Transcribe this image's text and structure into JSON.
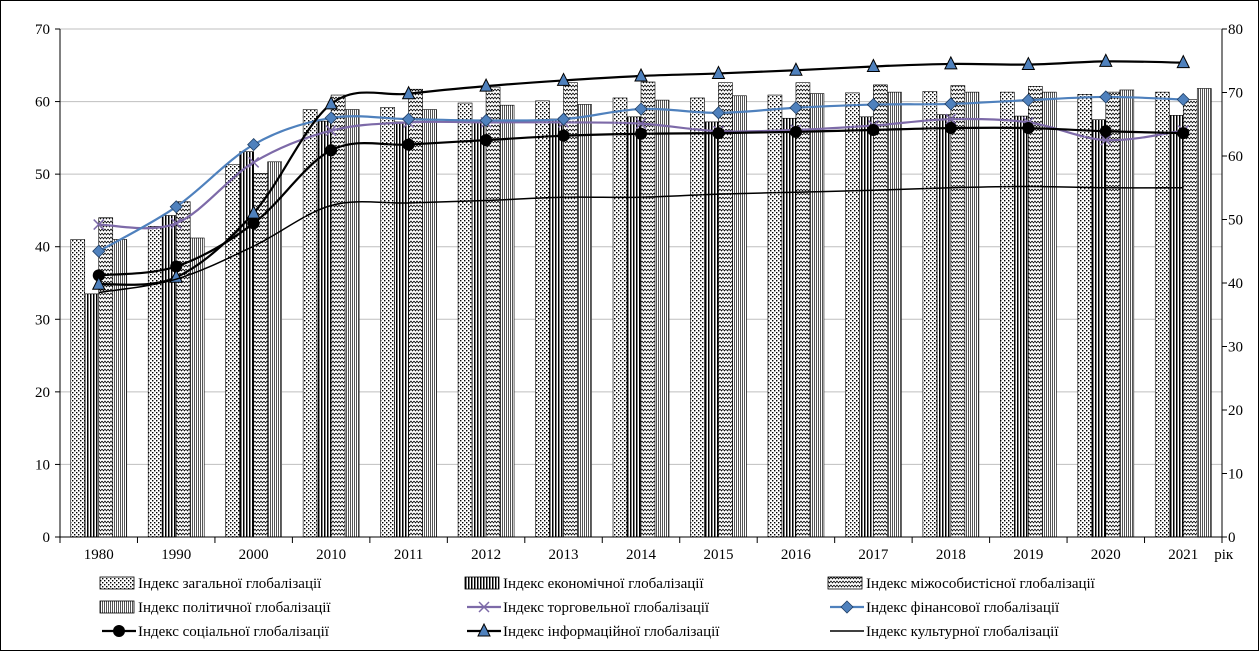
{
  "chart_data": {
    "type": "bar",
    "title": "",
    "xlabel": "рік",
    "ylabel_left": "",
    "ylabel_right": "",
    "categories": [
      "1980",
      "1990",
      "2000",
      "2010",
      "2011",
      "2012",
      "2013",
      "2014",
      "2015",
      "2016",
      "2017",
      "2018",
      "2019",
      "2020",
      "2021"
    ],
    "ylim_left": [
      0,
      70
    ],
    "yticks_left": [
      0,
      10,
      20,
      30,
      40,
      50,
      60,
      70
    ],
    "ylim_right": [
      0,
      80
    ],
    "yticks_right": [
      0,
      10,
      20,
      30,
      40,
      50,
      60,
      70,
      80
    ],
    "grid": "horizontal",
    "legend_position": "bottom",
    "bar_series": [
      {
        "name": "Індекс загальної глобалізації",
        "axis": "left",
        "pattern": "dots",
        "values": [
          41.0,
          42.8,
          51.3,
          58.9,
          59.2,
          59.8,
          60.1,
          60.5,
          60.5,
          60.9,
          61.2,
          61.4,
          61.3,
          61.0,
          61.3
        ]
      },
      {
        "name": "Індекс економічної глобалізації",
        "axis": "left",
        "pattern": "vlines",
        "values": [
          33.5,
          44.3,
          53.1,
          57.3,
          57.2,
          57.4,
          57.6,
          57.9,
          57.2,
          57.7,
          57.9,
          58.2,
          58.0,
          57.5,
          58.1
        ]
      },
      {
        "name": "Індекс міжособистісної глобалізації",
        "axis": "left",
        "pattern": "waves",
        "values": [
          44.0,
          46.2,
          50.1,
          60.9,
          61.7,
          62.0,
          62.6,
          62.7,
          62.6,
          62.6,
          62.3,
          62.2,
          62.1,
          61.3,
          60.3
        ]
      },
      {
        "name": "Індекс політичної глобалізації",
        "axis": "left",
        "pattern": "dense-vlines",
        "values": [
          41.0,
          41.2,
          51.7,
          58.9,
          58.9,
          59.5,
          59.6,
          60.2,
          60.8,
          61.1,
          61.3,
          61.3,
          61.3,
          61.6,
          61.8
        ]
      }
    ],
    "line_series": [
      {
        "name": "Індекс торговельної глобалізації",
        "axis": "right",
        "marker": "x",
        "color": "#7d6aa8",
        "values": [
          49.2,
          49.4,
          59.0,
          64.0,
          65.3,
          65.3,
          65.3,
          65.1,
          63.9,
          64.1,
          64.8,
          65.8,
          65.3,
          62.5,
          64.0
        ]
      },
      {
        "name": "Індекс фінансової глобалізації",
        "axis": "right",
        "marker": "diamond",
        "color": "#4f81bd",
        "values": [
          45.0,
          52.0,
          61.8,
          66.0,
          65.8,
          65.6,
          65.8,
          67.4,
          66.8,
          67.6,
          68.1,
          68.2,
          68.8,
          69.3,
          68.9
        ]
      },
      {
        "name": "Індекс соціальної глобалізації",
        "axis": "right",
        "marker": "circle",
        "color": "#000000",
        "values": [
          41.2,
          42.6,
          49.4,
          60.9,
          61.8,
          62.5,
          63.2,
          63.5,
          63.6,
          63.8,
          64.1,
          64.4,
          64.4,
          63.9,
          63.6
        ]
      },
      {
        "name": "Індекс інформаційної глобалізації",
        "axis": "right",
        "marker": "triangle",
        "color": "#000000",
        "values": [
          39.8,
          40.9,
          51.0,
          68.2,
          69.8,
          71.0,
          71.9,
          72.6,
          73.0,
          73.5,
          74.1,
          74.5,
          74.4,
          74.9,
          74.7
        ]
      },
      {
        "name": "Індекс культурної глобалізації",
        "axis": "right",
        "marker": "none",
        "color": "#000000",
        "values": [
          38.5,
          40.6,
          45.8,
          52.2,
          52.6,
          53.0,
          53.5,
          53.5,
          54.0,
          54.3,
          54.6,
          55.0,
          55.2,
          55.0,
          55.0
        ]
      }
    ]
  }
}
